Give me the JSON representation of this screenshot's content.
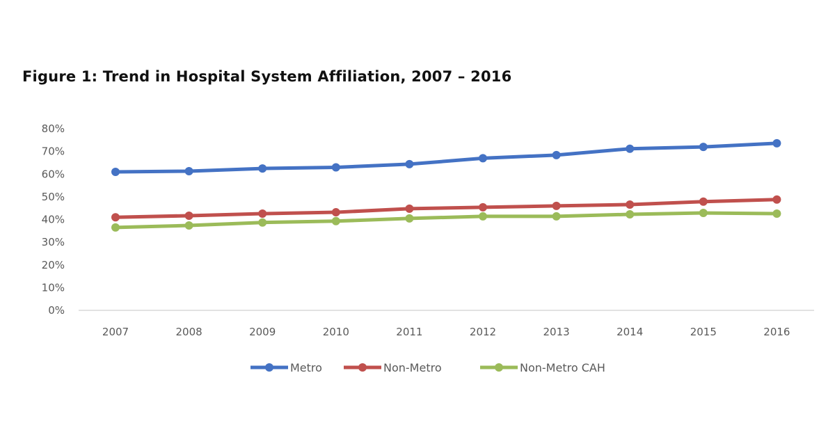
{
  "chart_data": {
    "type": "line",
    "title": "Figure 1: Trend in Hospital System Affiliation, 2007 – 2016",
    "xlabel": "",
    "ylabel": "",
    "x": [
      "2007",
      "2008",
      "2009",
      "2010",
      "2011",
      "2012",
      "2013",
      "2014",
      "2015",
      "2016"
    ],
    "y_ticks": [
      "0%",
      "10%",
      "20%",
      "30%",
      "40%",
      "50%",
      "60%",
      "70%",
      "80%"
    ],
    "ylim": [
      0,
      80
    ],
    "grid": false,
    "legend_position": "bottom",
    "series": [
      {
        "name": "Metro",
        "color": "#4472C4",
        "values": [
          61.0,
          61.3,
          62.5,
          63.0,
          64.4,
          67.0,
          68.4,
          71.2,
          72.0,
          73.6
        ]
      },
      {
        "name": "Non-Metro",
        "color": "#C0504D",
        "values": [
          41.0,
          41.7,
          42.6,
          43.2,
          44.8,
          45.4,
          46.0,
          46.6,
          47.9,
          48.8
        ]
      },
      {
        "name": "Non-Metro CAH",
        "color": "#9BBB59",
        "values": [
          36.5,
          37.4,
          38.7,
          39.3,
          40.5,
          41.4,
          41.4,
          42.3,
          42.9,
          42.6
        ]
      }
    ]
  }
}
